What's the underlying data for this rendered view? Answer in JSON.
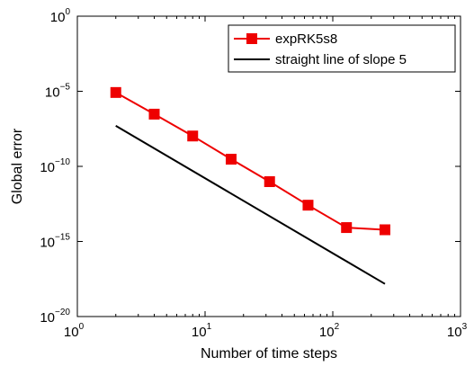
{
  "chart_data": {
    "type": "line",
    "title": "",
    "xlabel": "Number of time steps",
    "ylabel": "Global error",
    "xscale": "log",
    "yscale": "log",
    "xlim": [
      1,
      1000
    ],
    "ylim": [
      1e-20,
      1
    ],
    "grid": false,
    "legend_position": "top-right",
    "x_ticks": [
      {
        "value": 1,
        "base": "10",
        "exp": "0"
      },
      {
        "value": 10,
        "base": "10",
        "exp": "1"
      },
      {
        "value": 100,
        "base": "10",
        "exp": "2"
      },
      {
        "value": 1000,
        "base": "10",
        "exp": "3"
      }
    ],
    "y_ticks": [
      {
        "value": 1,
        "base": "10",
        "exp": "0"
      },
      {
        "value": 1e-05,
        "base": "10",
        "exp": "−5"
      },
      {
        "value": 1e-10,
        "base": "10",
        "exp": "−10"
      },
      {
        "value": 1e-15,
        "base": "10",
        "exp": "−15"
      },
      {
        "value": 1e-20,
        "base": "10",
        "exp": "−20"
      }
    ],
    "series": [
      {
        "name": "expRK5s8",
        "color": "#ee0000",
        "marker": "square",
        "x": [
          2,
          4,
          8,
          16,
          32,
          64,
          128,
          256
        ],
        "y": [
          8.3e-06,
          3e-07,
          1.05e-08,
          3e-10,
          9.6e-12,
          2.6e-13,
          8.4e-15,
          6e-15
        ]
      },
      {
        "name": "straight line of slope 5",
        "color": "#000000",
        "marker": "none",
        "x": [
          2,
          256
        ],
        "y": [
          5e-08,
          1.5e-18
        ]
      }
    ]
  }
}
